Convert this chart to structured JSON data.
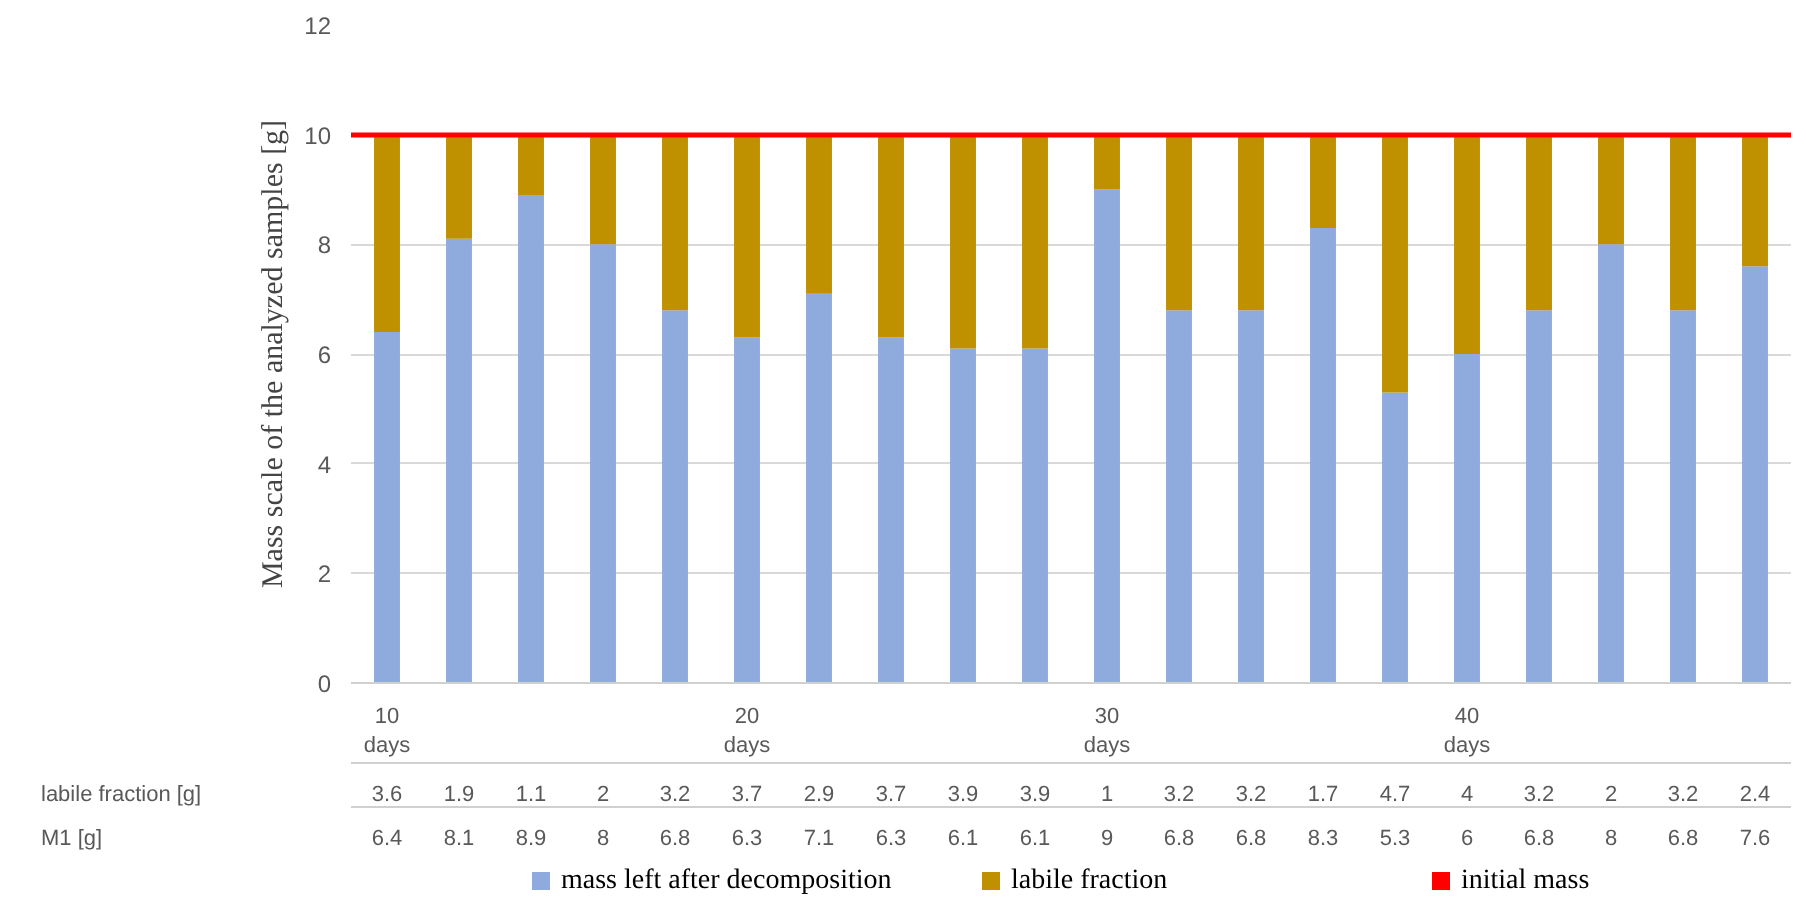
{
  "chart_data": {
    "type": "bar",
    "stacked": true,
    "ylabel": "Mass scale of the analyzed samples [g]",
    "categories": [
      "10 days",
      null,
      null,
      null,
      null,
      "20 days",
      null,
      null,
      null,
      null,
      "30 days",
      null,
      null,
      null,
      null,
      "40 days",
      null,
      null,
      null,
      null
    ],
    "series": [
      {
        "name": "mass left after decomposition",
        "color": "#8faadc",
        "values": [
          6.4,
          8.1,
          8.9,
          8,
          6.8,
          6.3,
          7.1,
          6.3,
          6.1,
          6.1,
          9,
          6.8,
          6.8,
          8.3,
          5.3,
          6,
          6.8,
          8,
          6.8,
          7.6
        ]
      },
      {
        "name": "labile fraction",
        "color": "#bf9000",
        "values": [
          3.6,
          1.9,
          1.1,
          2,
          3.2,
          3.7,
          2.9,
          3.7,
          3.9,
          3.9,
          1,
          3.2,
          3.2,
          1.7,
          4.7,
          4,
          3.2,
          2,
          3.2,
          2.4
        ]
      }
    ],
    "annotations": [
      "labile fraction [g]",
      "M1 [g]"
    ],
    "ref_lines": [
      {
        "axis": "y",
        "value": 10,
        "label": "initial mass",
        "color": "#ff0000"
      }
    ],
    "ylim": [
      0,
      12
    ],
    "yticks": [
      0,
      2,
      4,
      6,
      8,
      10,
      12
    ],
    "grid": "y",
    "legend": "bottom",
    "data_labels": true
  }
}
